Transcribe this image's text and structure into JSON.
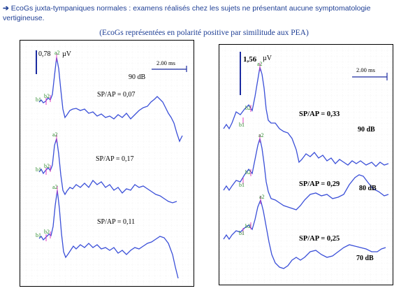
{
  "header": {
    "arrow": "➔",
    "text": "EcoGs juxta-tympaniques normales : examens réalisés chez les sujets ne présentant aucune symptomatologie vertigineuse."
  },
  "subtitle": "(EcoGs représentées en polarité positive par similitude aux PEA)",
  "left_panel": {
    "amplitude_scale": "0,78",
    "amplitude_unit": "µV",
    "time_scale": "2.00 ms",
    "intensity": "90 dB",
    "traces": [
      {
        "ratio": "SP/AP = 0,07",
        "labels": [
          "b1",
          "b2",
          "a2"
        ]
      },
      {
        "ratio": "SP/AP = 0,17",
        "labels": [
          "b1",
          "b2",
          "a2"
        ]
      },
      {
        "ratio": "SP/AP = 0,11",
        "labels": [
          "b1",
          "b2",
          "a2"
        ]
      }
    ]
  },
  "right_panel": {
    "amplitude_scale": "1,56",
    "amplitude_unit": "µV",
    "time_scale": "2.00 ms",
    "traces": [
      {
        "ratio": "SP/AP = 0,33",
        "intensity": "90 dB",
        "labels": [
          "b1",
          "b2",
          "a2"
        ]
      },
      {
        "ratio": "SP/AP = 0,29",
        "intensity": "80 dB",
        "labels": [
          "b1",
          "b2",
          "a2"
        ]
      },
      {
        "ratio": "SP/AP = 0,25",
        "intensity": "70 dB",
        "labels": [
          "b1",
          "b2",
          "a2"
        ]
      }
    ]
  },
  "colors": {
    "trace": "#3a4fd8",
    "marker": "#e040c0",
    "label": "#2a8a2a",
    "scale": "#1a2aa0",
    "header": "#1f3f95"
  }
}
